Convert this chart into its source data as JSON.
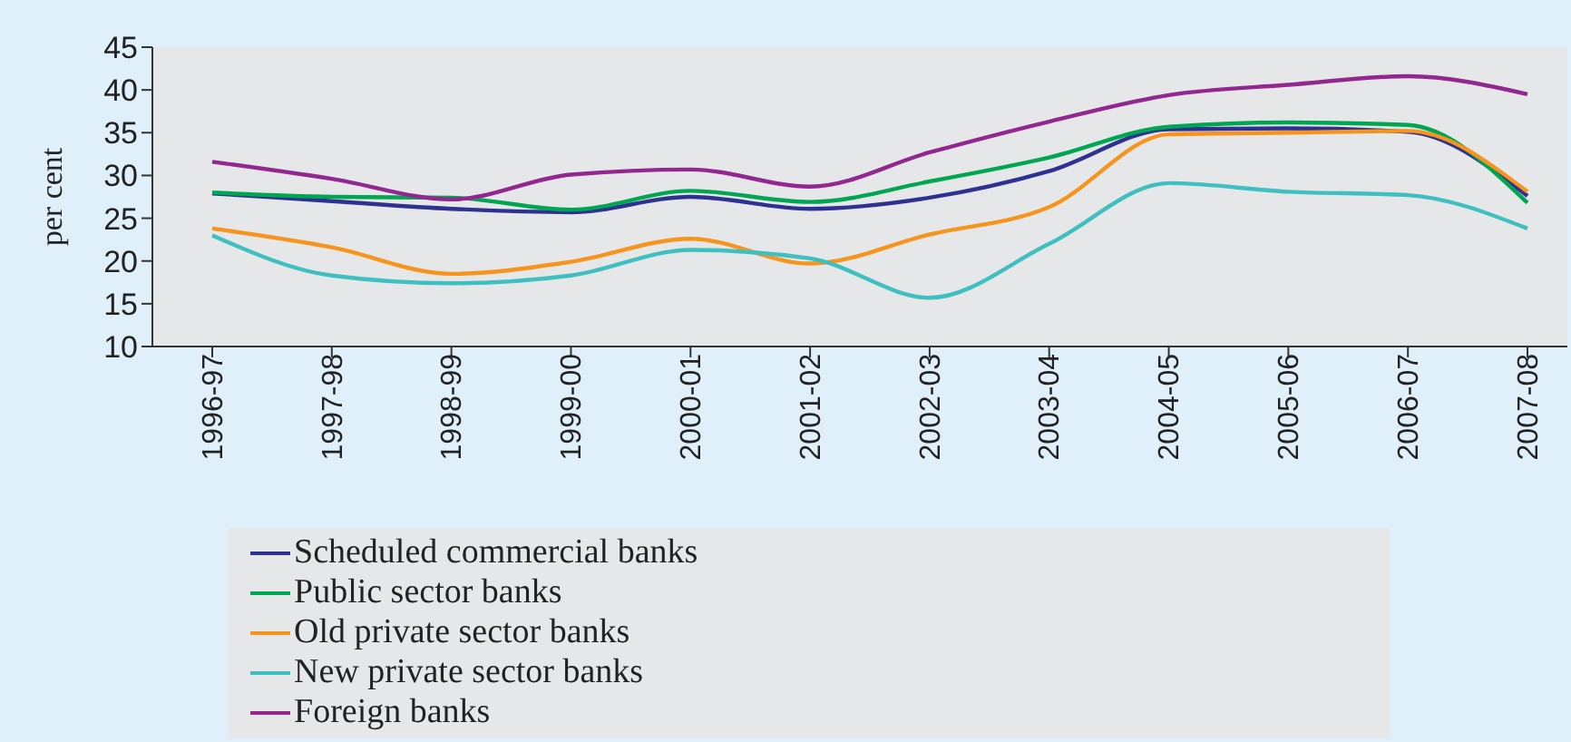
{
  "chart_data": {
    "type": "line",
    "ylabel": "per cent",
    "categories": [
      "1996-97",
      "1997-98",
      "1998-99",
      "1999-00",
      "2000-01",
      "2001-02",
      "2002-03",
      "2003-04",
      "2004-05",
      "2005-06",
      "2006-07",
      "2007-08"
    ],
    "series": [
      {
        "name": "Scheduled commercial banks",
        "color": "#2e3192",
        "values": [
          27.9,
          27,
          26.1,
          25.7,
          27.5,
          26.1,
          27.4,
          30.5,
          35.4,
          35.5,
          35.1,
          27.6
        ]
      },
      {
        "name": "Public sector banks",
        "color": "#00a651",
        "values": [
          28,
          27.5,
          27.4,
          26,
          28.2,
          26.9,
          29.3,
          32.1,
          35.7,
          36.2,
          35.9,
          26.8
        ]
      },
      {
        "name": "Old private sector banks",
        "color": "#f7941d",
        "values": [
          23.8,
          21.6,
          18.5,
          19.9,
          22.6,
          19.7,
          23.1,
          26.3,
          34.8,
          35,
          35.2,
          28.1
        ]
      },
      {
        "name": "New private sector banks",
        "color": "#3fbfbf",
        "values": [
          23,
          18.3,
          17.4,
          18.3,
          21.3,
          20.3,
          15.7,
          22,
          29.1,
          28.1,
          27.7,
          23.8
        ]
      },
      {
        "name": "Foreign banks",
        "color": "#92278f",
        "values": [
          31.6,
          29.6,
          27.2,
          30.1,
          30.7,
          28.7,
          32.7,
          36.3,
          39.4,
          40.6,
          41.6,
          39.5
        ]
      }
    ],
    "ylim": [
      10,
      45
    ],
    "yticks": [
      10,
      15,
      20,
      25,
      30,
      35,
      40,
      45
    ],
    "grid": false,
    "legend": "bottom",
    "marker": "none",
    "line_style": "solid"
  }
}
